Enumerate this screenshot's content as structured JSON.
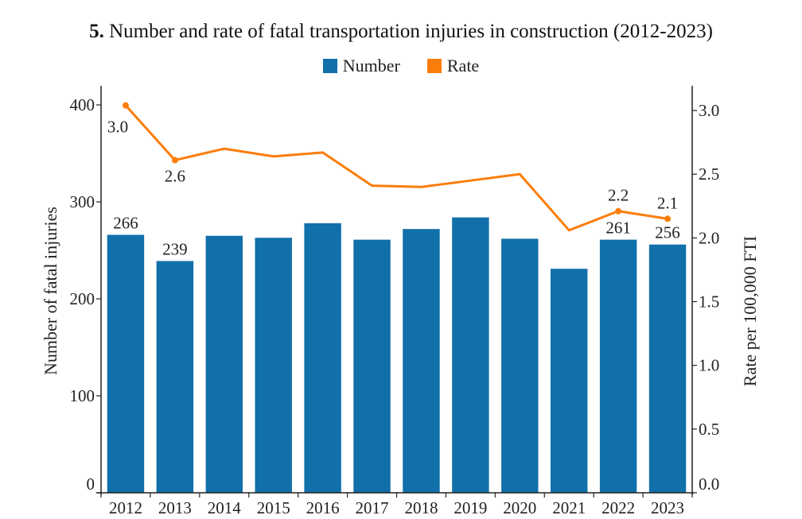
{
  "chart_data": {
    "type": "bar",
    "title_number": "5.",
    "title": "Number and rate of fatal transportation injuries in construction (2012-2023)",
    "xlabel": "",
    "ylabel": "Number of fatal injuries",
    "y2label": "Rate per 100,000 FTI",
    "ylim": [
      0,
      400
    ],
    "y2lim": [
      0,
      3.0
    ],
    "yticks": [
      "0",
      "100",
      "200",
      "300",
      "400"
    ],
    "y2ticks": [
      "0.0",
      "0.5",
      "1.0",
      "1.5",
      "2.0",
      "2.5",
      "3.0"
    ],
    "grid": false,
    "legend_position": "top-center",
    "categories": [
      "2012",
      "2013",
      "2014",
      "2015",
      "2016",
      "2017",
      "2018",
      "2019",
      "2020",
      "2021",
      "2022",
      "2023"
    ],
    "series": [
      {
        "name": "Number",
        "type": "bar",
        "axis": "left",
        "color": "#1170aa",
        "values": [
          266,
          239,
          265,
          263,
          278,
          261,
          272,
          284,
          262,
          231,
          261,
          256
        ],
        "labels": [
          "266",
          "239",
          "",
          "",
          "",
          "",
          "",
          "",
          "",
          "",
          "261",
          "256"
        ]
      },
      {
        "name": "Rate",
        "type": "line",
        "axis": "right",
        "color": "#fc7d0b",
        "values": [
          3.04,
          2.61,
          2.7,
          2.64,
          2.67,
          2.41,
          2.4,
          2.45,
          2.5,
          2.06,
          2.21,
          2.15
        ],
        "labels": [
          "3.0",
          "2.6",
          "",
          "",
          "",
          "",
          "",
          "",
          "",
          "",
          "2.2",
          "2.1"
        ]
      }
    ]
  }
}
